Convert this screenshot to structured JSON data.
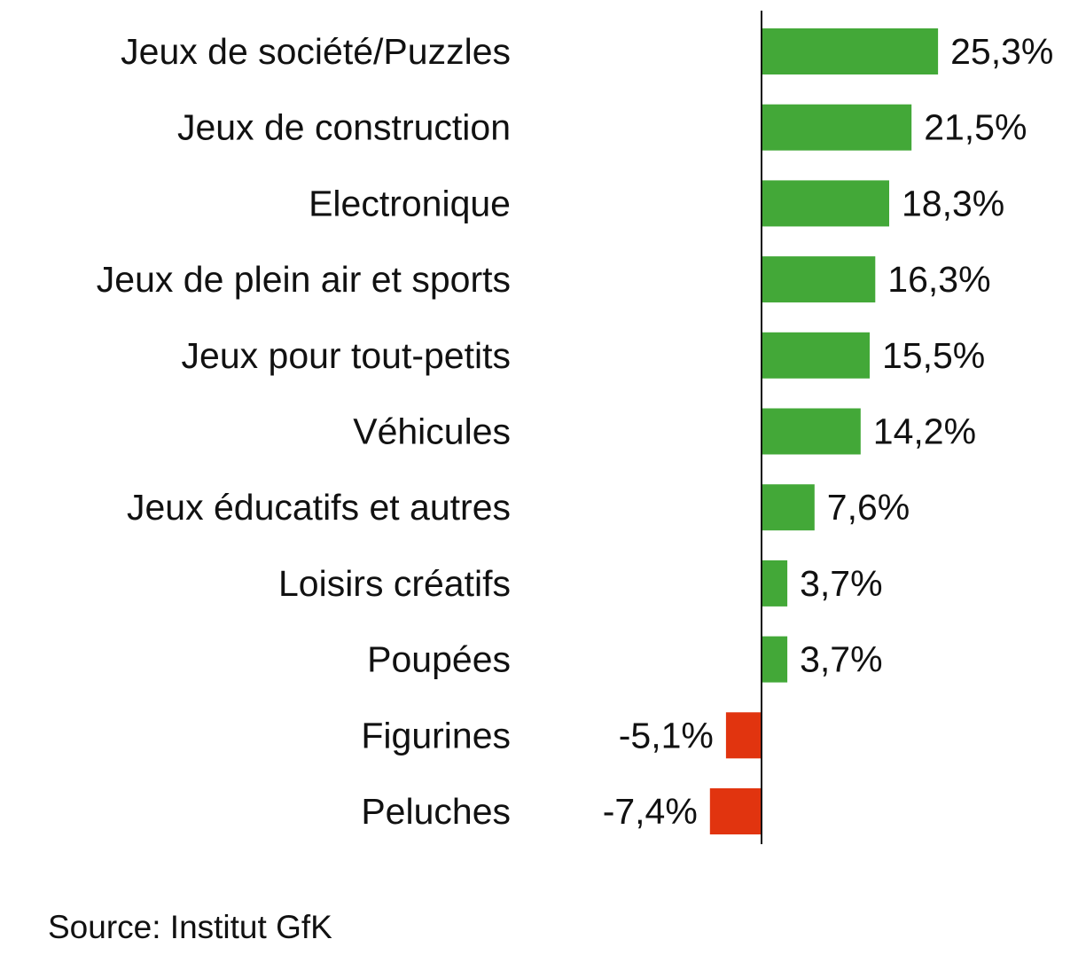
{
  "chart_data": {
    "type": "bar",
    "orientation": "horizontal",
    "categories": [
      "Jeux de société/Puzzles",
      "Jeux de construction",
      "Electronique",
      "Jeux de plein air et sports",
      "Jeux pour tout-petits",
      "Véhicules",
      "Jeux éducatifs et autres",
      "Loisirs créatifs",
      "Poupées",
      "Figurines",
      "Peluches"
    ],
    "values": [
      25.3,
      21.5,
      18.3,
      16.3,
      15.5,
      14.2,
      7.6,
      3.7,
      3.7,
      -5.1,
      -7.4
    ],
    "data_labels": [
      "25,3%",
      "21,5%",
      "18,3%",
      "16,3%",
      "15,5%",
      "14,2%",
      "7,6%",
      "3,7%",
      "3,7%",
      "-5,1%",
      "-7,4%"
    ],
    "title": "",
    "xlabel": "",
    "ylabel": "",
    "grid": false,
    "legend": "none",
    "colors": {
      "positive": "#43a838",
      "negative": "#e1340f",
      "axis": "#111111"
    }
  },
  "footer": {
    "source": "Source: Institut GfK"
  }
}
